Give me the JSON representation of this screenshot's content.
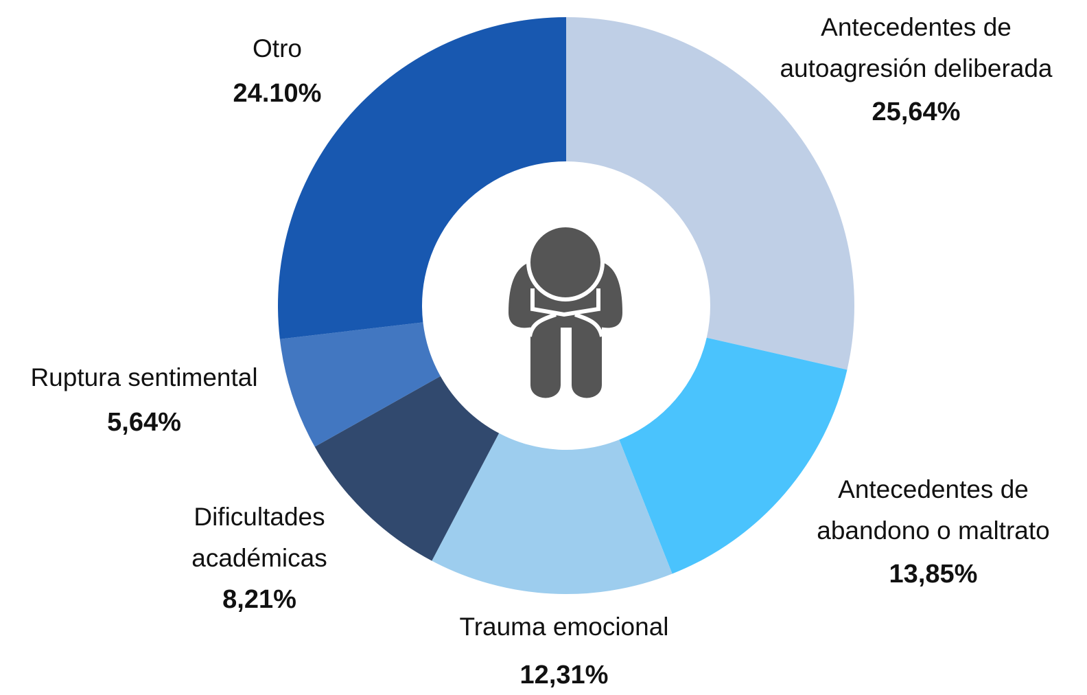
{
  "chart_data": {
    "type": "pie",
    "donut": true,
    "categories": [
      [
        "Antecedentes de",
        "autoagresión deliberada"
      ],
      [
        "Antecedentes de",
        "abandono o maltrato"
      ],
      [
        "Trauma emocional"
      ],
      [
        "Dificultades",
        "académicas"
      ],
      [
        "Ruptura sentimental"
      ],
      [
        "Otro"
      ]
    ],
    "values": [
      25.64,
      13.85,
      12.31,
      8.21,
      5.64,
      24.1
    ],
    "value_labels": [
      "25,64%",
      "13,85%",
      "12,31%",
      "8,21%",
      "5,64%",
      "24.10%"
    ],
    "colors": [
      "#bfcfe6",
      "#4ac3fd",
      "#9dcdee",
      "#31496e",
      "#4277c1",
      "#1858b0"
    ]
  }
}
